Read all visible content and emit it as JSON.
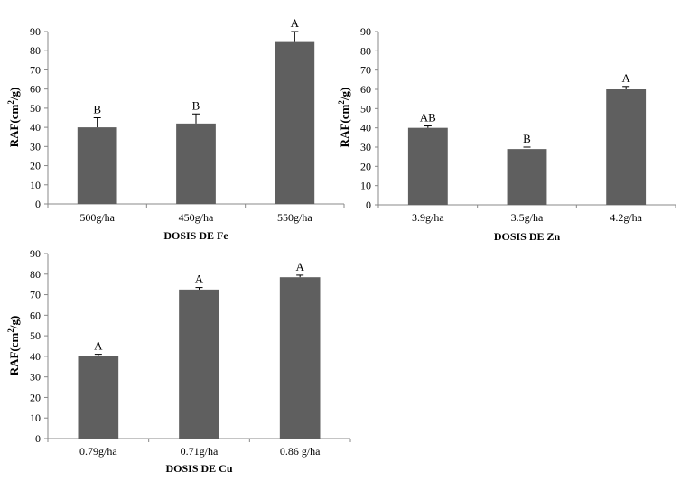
{
  "chart_data": [
    {
      "type": "bar",
      "categories": [
        "500g/ha",
        "450g/ha",
        "550g/ha"
      ],
      "values": [
        40,
        42,
        85
      ],
      "errors": [
        5,
        5,
        5
      ],
      "significance": [
        "B",
        "B",
        "A"
      ],
      "xlabel": "DOSIS DE Fe",
      "ylabel": {
        "base": "RAF(cm",
        "sup": "2",
        "tail": "/g)"
      },
      "ylim": [
        0,
        90
      ],
      "yticks": [
        0,
        10,
        20,
        30,
        40,
        50,
        60,
        70,
        80,
        90
      ],
      "bar_color": "#5f5f5f"
    },
    {
      "type": "bar",
      "categories": [
        "3.9g/ha",
        "3.5g/ha",
        "4.2g/ha"
      ],
      "values": [
        40,
        29,
        60
      ],
      "errors": [
        1,
        1,
        1.5
      ],
      "significance": [
        "AB",
        "B",
        "A"
      ],
      "xlabel": "DOSIS DE Zn",
      "ylabel": {
        "base": "RAF(cm",
        "sup": "2",
        "tail": "/g)"
      },
      "ylim": [
        0,
        90
      ],
      "yticks": [
        0,
        10,
        20,
        30,
        40,
        50,
        60,
        70,
        80,
        90
      ],
      "bar_color": "#5f5f5f"
    },
    {
      "type": "bar",
      "categories": [
        "0.79g/ha",
        "0.71g/ha",
        "0.86 g/ha"
      ],
      "values": [
        40,
        72.5,
        78.5
      ],
      "errors": [
        1,
        1,
        1
      ],
      "significance": [
        "A",
        "A",
        "A"
      ],
      "xlabel": "DOSIS DE Cu",
      "ylabel": {
        "base": "RAF(cm",
        "sup": "2",
        "tail": "/g)"
      },
      "ylim": [
        0,
        90
      ],
      "yticks": [
        0,
        10,
        20,
        30,
        40,
        50,
        60,
        70,
        80,
        90
      ],
      "bar_color": "#5f5f5f"
    }
  ]
}
